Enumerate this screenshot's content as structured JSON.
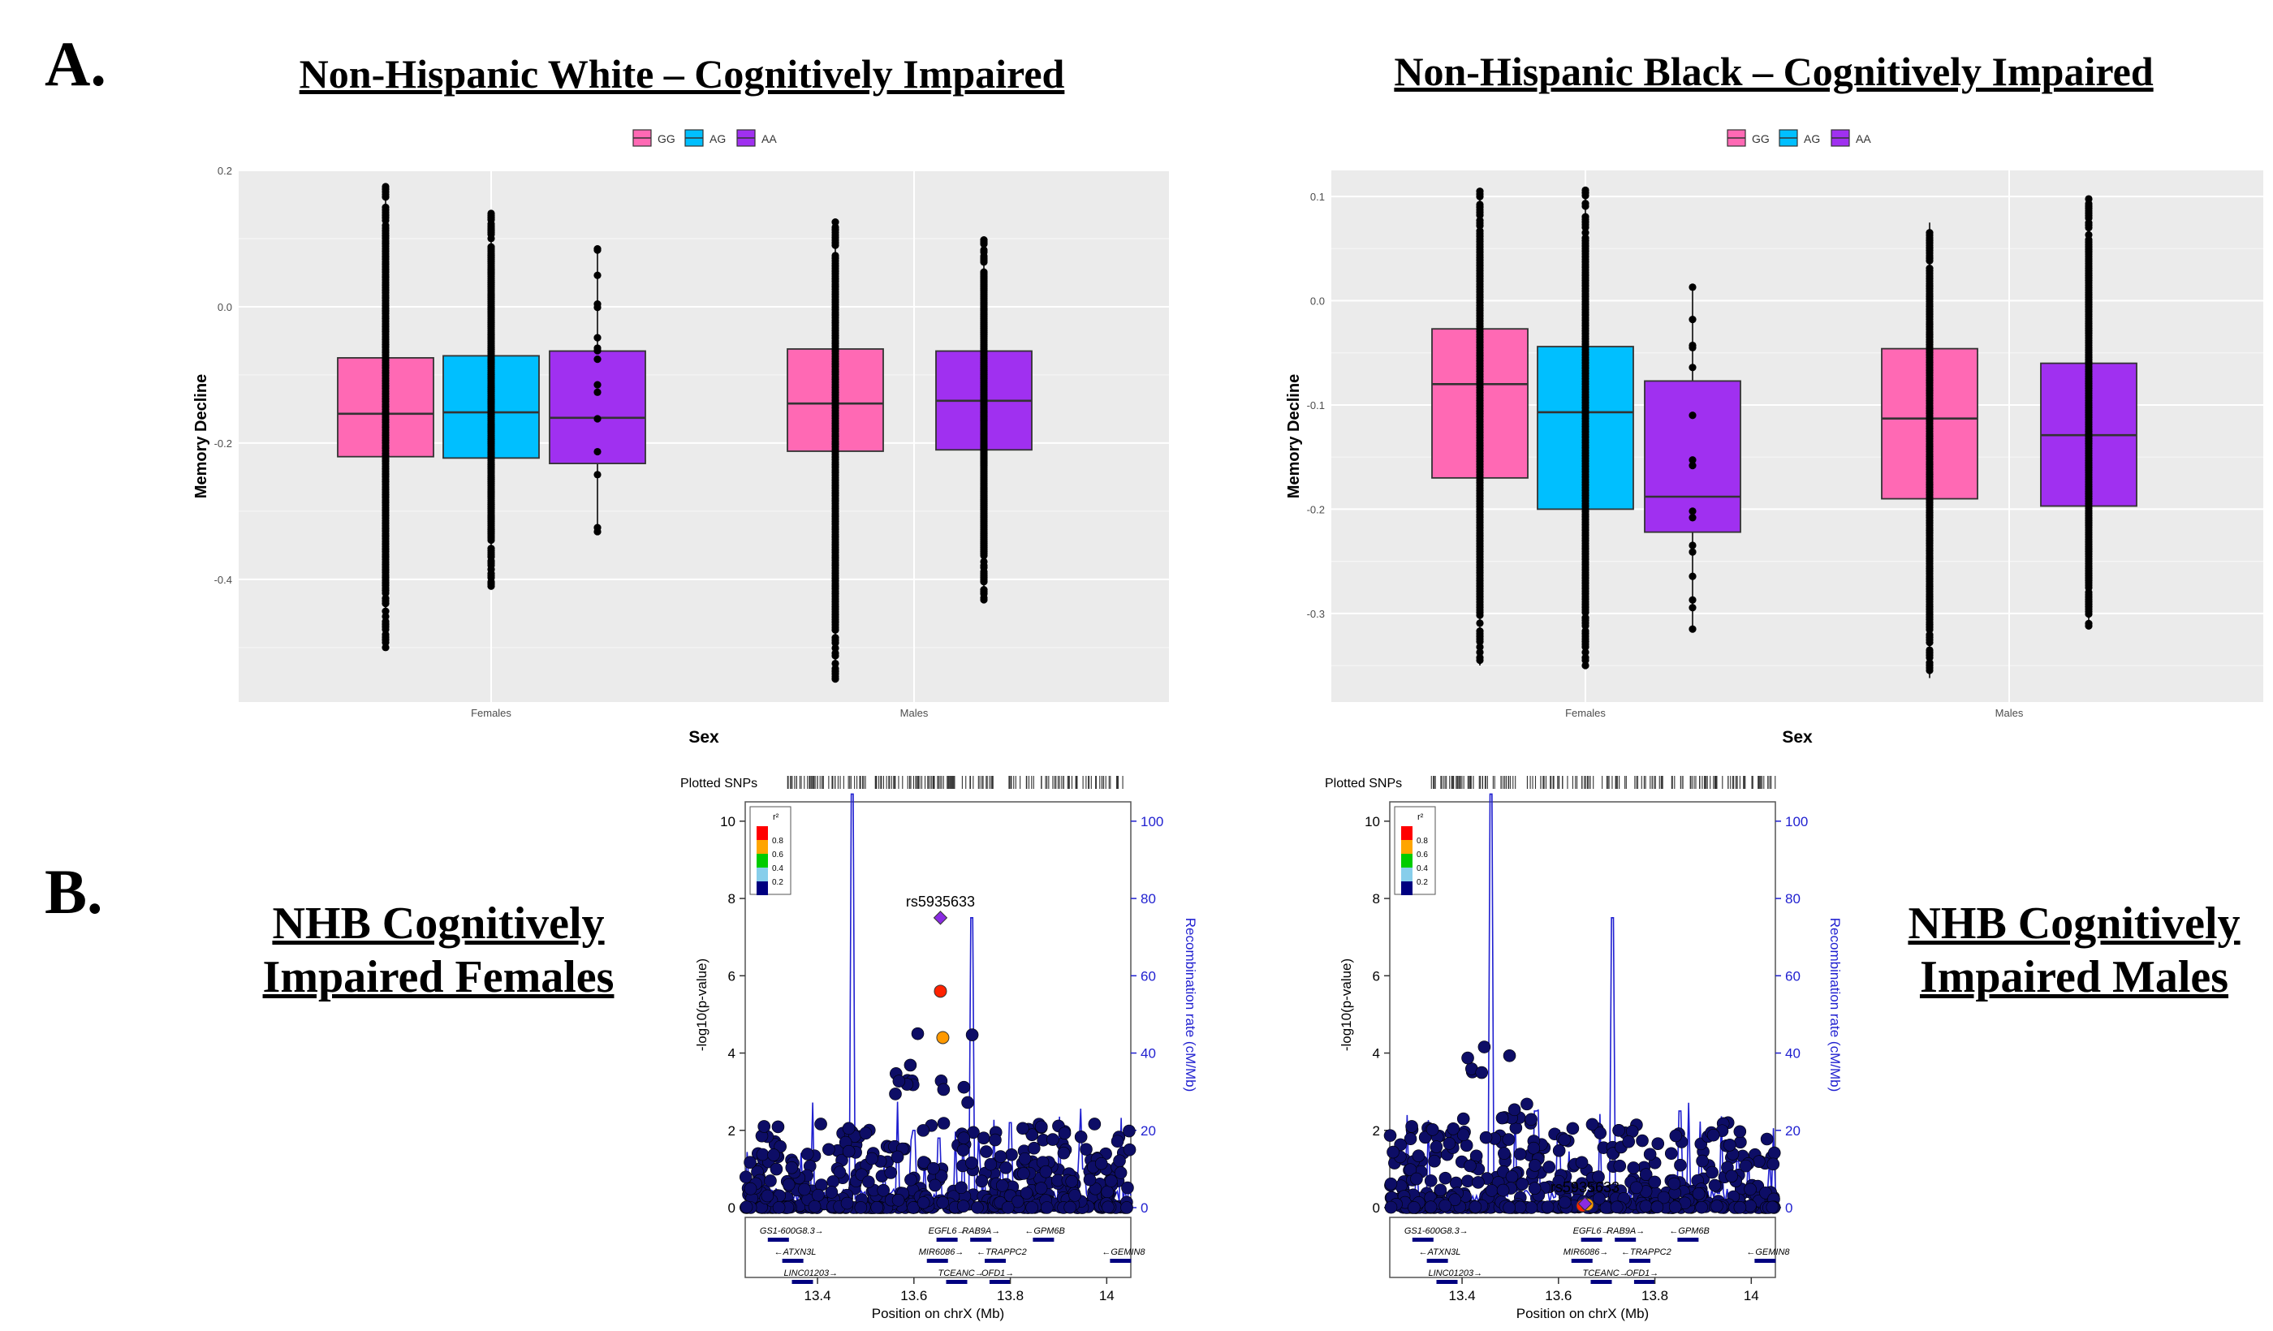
{
  "panel_labels": {
    "a": "A.",
    "b": "B."
  },
  "colors": {
    "GG": "#ff69b4",
    "AG": "#00bfff",
    "AA": "#a030f0",
    "panel_bg": "#ebebeb",
    "recomb": "#1f1fd0",
    "lz_point": "#0d0d66"
  },
  "chart_data": [
    {
      "type": "box",
      "title": "Non-Hispanic White – Cognitively Impaired",
      "xlabel": "Sex",
      "ylabel": "Memory Decline",
      "legend": {
        "entries": [
          "GG",
          "AG",
          "AA"
        ],
        "placement": "top"
      },
      "ylim": [
        -0.58,
        0.2
      ],
      "yticks": [
        0.2,
        0.0,
        -0.2,
        -0.4
      ],
      "ytick_labels": [
        "0.2",
        "0.0",
        "-0.2",
        "-0.4"
      ],
      "categories": [
        "Females",
        "Males"
      ],
      "boxes": [
        {
          "category": "Females",
          "genotype": "GG",
          "q1": -0.22,
          "median": -0.157,
          "q3": -0.075,
          "whisker_low": -0.5,
          "whisker_high": 0.18
        },
        {
          "category": "Females",
          "genotype": "AG",
          "q1": -0.222,
          "median": -0.155,
          "q3": -0.072,
          "whisker_low": -0.41,
          "whisker_high": 0.14
        },
        {
          "category": "Females",
          "genotype": "AA",
          "q1": -0.23,
          "median": -0.163,
          "q3": -0.065,
          "whisker_low": -0.33,
          "whisker_high": 0.085
        },
        {
          "category": "Males",
          "genotype": "GG",
          "q1": -0.212,
          "median": -0.142,
          "q3": -0.062,
          "whisker_low": -0.55,
          "whisker_high": 0.128
        },
        {
          "category": "Males",
          "genotype": "AA",
          "q1": -0.21,
          "median": -0.138,
          "q3": -0.065,
          "whisker_low": -0.43,
          "whisker_high": 0.098
        }
      ]
    },
    {
      "type": "box",
      "title": "Non-Hispanic Black – Cognitively Impaired",
      "xlabel": "Sex",
      "ylabel": "Memory Decline",
      "legend": {
        "entries": [
          "GG",
          "AG",
          "AA"
        ],
        "placement": "top"
      },
      "ylim": [
        -0.385,
        0.125
      ],
      "yticks": [
        0.1,
        0.0,
        -0.1,
        -0.2,
        -0.3
      ],
      "ytick_labels": [
        "0.1",
        "0.0",
        "-0.1",
        "-0.2",
        "-0.3"
      ],
      "categories": [
        "Females",
        "Males"
      ],
      "boxes": [
        {
          "category": "Females",
          "genotype": "GG",
          "q1": -0.17,
          "median": -0.08,
          "q3": -0.027,
          "whisker_low": -0.35,
          "whisker_high": 0.105
        },
        {
          "category": "Females",
          "genotype": "AG",
          "q1": -0.2,
          "median": -0.107,
          "q3": -0.044,
          "whisker_low": -0.35,
          "whisker_high": 0.106
        },
        {
          "category": "Females",
          "genotype": "AA",
          "q1": -0.222,
          "median": -0.188,
          "q3": -0.077,
          "whisker_low": -0.315,
          "whisker_high": 0.013
        },
        {
          "category": "Males",
          "genotype": "GG",
          "q1": -0.19,
          "median": -0.113,
          "q3": -0.046,
          "whisker_low": -0.362,
          "whisker_high": 0.075
        },
        {
          "category": "Males",
          "genotype": "AA",
          "q1": -0.197,
          "median": -0.129,
          "q3": -0.06,
          "whisker_low": -0.312,
          "whisker_high": 0.1
        }
      ]
    },
    {
      "type": "scatter",
      "title": "NHB Cognitively Impaired Females",
      "xlabel": "Position on chrX (Mb)",
      "ylabel": "-log10(p-value)",
      "y2label": "Recombination rate (cM/Mb)",
      "xlim": [
        13.25,
        14.05
      ],
      "ylim": [
        0,
        10.5
      ],
      "y2lim": [
        0,
        105
      ],
      "xticks": [
        13.4,
        13.6,
        13.8,
        14
      ],
      "xtick_labels": [
        "13.4",
        "13.6",
        "13.8",
        "14"
      ],
      "yticks": [
        0,
        2,
        4,
        6,
        8,
        10
      ],
      "y2ticks": [
        0,
        20,
        40,
        60,
        80,
        100
      ],
      "plotted_snps_label": "Plotted SNPs",
      "ld_legend": {
        "title": "r²",
        "values": [
          "0.8",
          "0.6",
          "0.4",
          "0.2"
        ],
        "colors": [
          "#ff0000",
          "#ffa500",
          "#00cc00",
          "#87ceeb",
          "#000080"
        ]
      },
      "lead_snp": {
        "label": "rs5935633",
        "x": 13.655,
        "y": 7.5
      },
      "highlighted_points": [
        {
          "x": 13.655,
          "y": 5.6,
          "color": "#ff2200"
        },
        {
          "x": 13.66,
          "y": 4.4,
          "color": "#ff9900"
        }
      ],
      "recomb_peaks": [
        [
          13.26,
          5
        ],
        [
          13.47,
          107
        ],
        [
          13.6,
          20
        ],
        [
          13.65,
          18
        ],
        [
          13.72,
          75
        ],
        [
          13.8,
          22
        ],
        [
          13.95,
          10
        ]
      ],
      "genes": [
        {
          "name": "GS1-600G8.3→",
          "x": 13.28,
          "row": 0
        },
        {
          "name": "EGFL6→",
          "x": 13.63,
          "row": 0
        },
        {
          "name": "RAB9A→",
          "x": 13.7,
          "row": 0
        },
        {
          "name": "←GPM6B",
          "x": 13.83,
          "row": 0
        },
        {
          "name": "←ATXN3L",
          "x": 13.31,
          "row": 1
        },
        {
          "name": "MIR6086→",
          "x": 13.61,
          "row": 1
        },
        {
          "name": "←TRAPPC2",
          "x": 13.73,
          "row": 1
        },
        {
          "name": "←GEMIN8",
          "x": 13.99,
          "row": 1
        },
        {
          "name": "LINC01203→",
          "x": 13.33,
          "row": 2
        },
        {
          "name": "TCEANC→",
          "x": 13.65,
          "row": 2
        },
        {
          "name": "OFD1→",
          "x": 13.74,
          "row": 2
        }
      ]
    },
    {
      "type": "scatter",
      "title": "NHB Cognitively Impaired Males",
      "xlabel": "Position on chrX (Mb)",
      "ylabel": "-log10(p-value)",
      "y2label": "Recombination rate (cM/Mb)",
      "xlim": [
        13.25,
        14.05
      ],
      "ylim": [
        0,
        10.5
      ],
      "y2lim": [
        0,
        105
      ],
      "xticks": [
        13.4,
        13.6,
        13.8,
        14
      ],
      "xtick_labels": [
        "13.4",
        "13.6",
        "13.8",
        "14"
      ],
      "yticks": [
        0,
        2,
        4,
        6,
        8,
        10
      ],
      "y2ticks": [
        0,
        20,
        40,
        60,
        80,
        100
      ],
      "plotted_snps_label": "Plotted SNPs",
      "ld_legend": {
        "title": "r²",
        "values": [
          "0.8",
          "0.6",
          "0.4",
          "0.2"
        ],
        "colors": [
          "#ff0000",
          "#ffa500",
          "#00cc00",
          "#87ceeb",
          "#000080"
        ]
      },
      "lead_snp": {
        "label": "rs5935633",
        "x": 13.655,
        "y": 0.1
      },
      "highlighted_points": [
        {
          "x": 13.65,
          "y": 0.05,
          "color": "#ff2200"
        },
        {
          "x": 13.66,
          "y": 0.08,
          "color": "#ff9900"
        }
      ],
      "recomb_peaks": [
        [
          13.26,
          5
        ],
        [
          13.46,
          107
        ],
        [
          13.55,
          25
        ],
        [
          13.6,
          20
        ],
        [
          13.71,
          75
        ],
        [
          13.85,
          25
        ],
        [
          13.97,
          12
        ]
      ],
      "genes": [
        {
          "name": "GS1-600G8.3→",
          "x": 13.28,
          "row": 0
        },
        {
          "name": "EGFL6→",
          "x": 13.63,
          "row": 0
        },
        {
          "name": "RAB9A→",
          "x": 13.7,
          "row": 0
        },
        {
          "name": "←GPM6B",
          "x": 13.83,
          "row": 0
        },
        {
          "name": "←ATXN3L",
          "x": 13.31,
          "row": 1
        },
        {
          "name": "MIR6086→",
          "x": 13.61,
          "row": 1
        },
        {
          "name": "←TRAPPC2",
          "x": 13.73,
          "row": 1
        },
        {
          "name": "←GEMIN8",
          "x": 13.99,
          "row": 1
        },
        {
          "name": "LINC01203→",
          "x": 13.33,
          "row": 2
        },
        {
          "name": "TCEANC→",
          "x": 13.65,
          "row": 2
        },
        {
          "name": "OFD1→",
          "x": 13.74,
          "row": 2
        }
      ]
    }
  ]
}
